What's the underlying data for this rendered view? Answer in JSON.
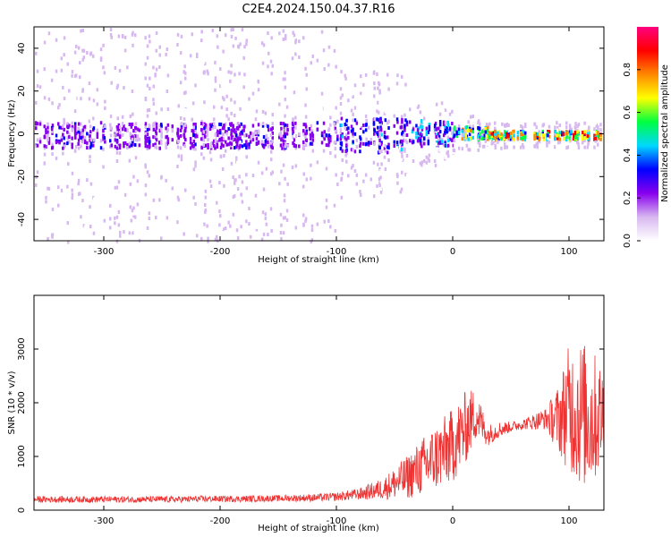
{
  "title": "C2E4.2024.150.04.37.R16",
  "chart_data": [
    {
      "type": "heatmap",
      "xlabel": "Height of straight line (km)",
      "ylabel": "Frequency (Hz)",
      "xlim": [
        -360,
        130
      ],
      "ylim": [
        -50,
        50
      ],
      "xticks": [
        -300,
        -200,
        -100,
        0,
        100
      ],
      "yticks": [
        -40,
        -20,
        0,
        20,
        40
      ],
      "colorbar": {
        "label": "Normalized spectral amplitude",
        "range": [
          0,
          1
        ],
        "ticks": [
          "0.0",
          "0.2",
          "0.4",
          "0.6",
          "0.8"
        ],
        "colormap": [
          "#ffffff",
          "#d8b8f0",
          "#8800ee",
          "#0000ff",
          "#00d8ff",
          "#00ff40",
          "#ffff00",
          "#ff8800",
          "#ff0000",
          "#ff0080"
        ]
      },
      "bands": [
        {
          "x_range": [
            -360,
            -100
          ],
          "center_hz": 0,
          "core_halfwidth_hz": 6,
          "spread_halfwidth_hz": 50,
          "peak_amplitude": 0.3
        },
        {
          "x_range": [
            -100,
            -40
          ],
          "center_hz": 0,
          "core_halfwidth_hz": 8,
          "spread_halfwidth_hz": 30,
          "peak_amplitude": 0.4
        },
        {
          "x_range": [
            -40,
            0
          ],
          "center_hz": 1,
          "core_halfwidth_hz": 6,
          "spread_halfwidth_hz": 15,
          "peak_amplitude": 0.5
        },
        {
          "x_range": [
            0,
            30
          ],
          "center_hz": 1,
          "core_halfwidth_hz": 3,
          "spread_halfwidth_hz": 8,
          "peak_amplitude": 0.8
        },
        {
          "x_range": [
            30,
            130
          ],
          "center_hz": 0,
          "core_halfwidth_hz": 2,
          "spread_halfwidth_hz": 6,
          "peak_amplitude": 0.9
        }
      ]
    },
    {
      "type": "line",
      "xlabel": "Height of straight line (km)",
      "ylabel": "SNR (10 * v/v)",
      "xlim": [
        -360,
        130
      ],
      "ylim": [
        0,
        4000
      ],
      "xticks": [
        -300,
        -200,
        -100,
        0,
        100
      ],
      "yticks": [
        0,
        1000,
        2000,
        3000
      ],
      "color": "#ee3333",
      "series": [
        {
          "x": [
            -360,
            -330,
            -300,
            -270,
            -240,
            -210,
            -180,
            -150,
            -120,
            -100,
            -80,
            -60,
            -40,
            -20,
            0,
            10,
            20,
            30,
            40,
            50,
            60,
            70,
            80,
            90,
            100,
            110,
            120,
            130
          ],
          "y": [
            200,
            200,
            200,
            200,
            200,
            210,
            210,
            220,
            230,
            250,
            300,
            400,
            600,
            900,
            1200,
            1500,
            1800,
            1400,
            1500,
            1550,
            1600,
            1650,
            1700,
            1700,
            1900,
            1800,
            1700,
            1800
          ],
          "spread": [
            60,
            60,
            60,
            60,
            60,
            60,
            60,
            60,
            70,
            80,
            110,
            200,
            400,
            600,
            700,
            700,
            500,
            200,
            150,
            100,
            100,
            150,
            200,
            600,
            1200,
            1400,
            1300,
            900
          ]
        }
      ]
    }
  ]
}
